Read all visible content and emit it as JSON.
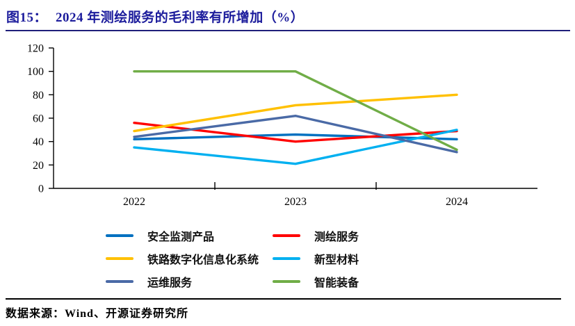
{
  "figure": {
    "number_label": "图15：",
    "title": "2024 年测绘服务的毛利率有所增加（%）"
  },
  "footer": {
    "source": "数据来源：Wind、开源证券研究所"
  },
  "colors": {
    "title_text": "#1C1C9C",
    "title_rule": "#1F1F7A",
    "footer_rule": "#000000",
    "axis": "#000000"
  },
  "chart_data": {
    "type": "line",
    "title": "2024 年测绘服务的毛利率有所增加（%）",
    "categories": [
      "2022",
      "2023",
      "2024"
    ],
    "series": [
      {
        "name": "安全监测产品",
        "color": "#0070C0",
        "values": [
          42,
          46,
          42
        ]
      },
      {
        "name": "测绘服务",
        "color": "#FF0000",
        "values": [
          56,
          40,
          49
        ]
      },
      {
        "name": "铁路数字化信息化系统",
        "color": "#FFC000",
        "values": [
          49,
          71,
          80
        ]
      },
      {
        "name": "新型材料",
        "color": "#00B0F0",
        "values": [
          35,
          21,
          50
        ]
      },
      {
        "name": "运维服务",
        "color": "#4A6AA6",
        "values": [
          44,
          62,
          31
        ]
      },
      {
        "name": "智能装备",
        "color": "#70AD47",
        "values": [
          100,
          100,
          33
        ]
      }
    ],
    "xlabel": "",
    "ylabel": "",
    "ylim": [
      0,
      120
    ],
    "ytick_step": 20,
    "grid": false,
    "legend_position": "bottom"
  }
}
